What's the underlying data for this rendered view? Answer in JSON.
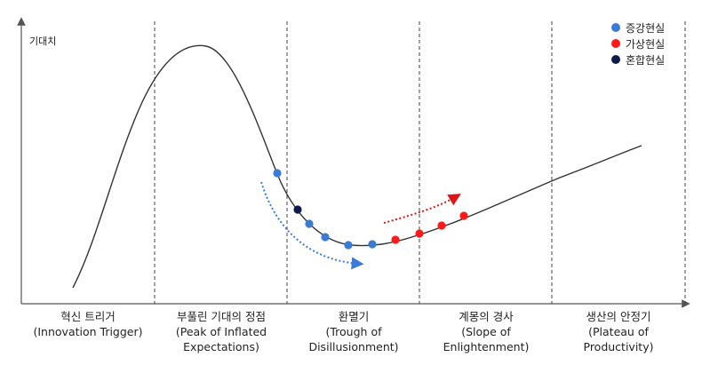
{
  "y_axis_label": "기대치",
  "legend": [
    {
      "label": "증강현실",
      "color": "#3a7bd5"
    },
    {
      "label": "가상현실",
      "color": "#ff1a1a"
    },
    {
      "label": "혼합현실",
      "color": "#0d1b4a"
    }
  ],
  "phases": [
    {
      "ko": "혁신 트리거",
      "en": "(Innovation Trigger)"
    },
    {
      "ko": "부풀린 기대의 정점",
      "en": "(Peak of Inflated\nExpectations)"
    },
    {
      "ko": "환멸기",
      "en": "(Trough of\nDisillusionment)"
    },
    {
      "ko": "계몽의 경사",
      "en": "(Slope of\nEnlightenment)"
    },
    {
      "ko": "생산의 안정기",
      "en": "(Plateau of Productivity)"
    }
  ],
  "colors": {
    "curve": "#333333",
    "axis": "#555555",
    "divider": "#444444",
    "ar_arrow": "#3a7bd5",
    "vr_arrow": "#e01515"
  },
  "markers": [
    {
      "type": "ar"
    },
    {
      "type": "mr"
    },
    {
      "type": "ar"
    },
    {
      "type": "ar"
    },
    {
      "type": "ar"
    },
    {
      "type": "ar"
    },
    {
      "type": "vr"
    },
    {
      "type": "vr"
    },
    {
      "type": "vr"
    },
    {
      "type": "vr"
    }
  ]
}
